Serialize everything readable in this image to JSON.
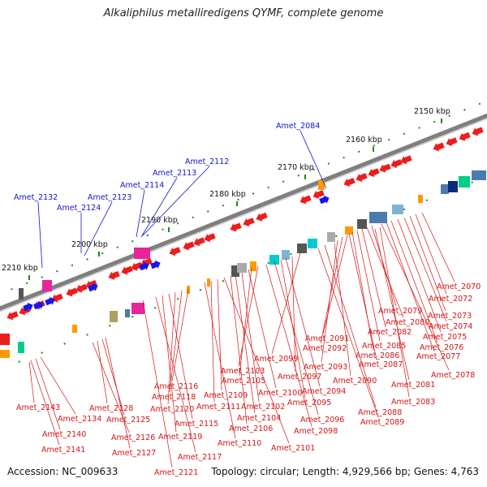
{
  "title": "Alkaliphilus metalliredigens QYMF, complete genome",
  "footer": {
    "accession": "Accession: NC_009633",
    "stats": "Topology: circular; Length: 4,929,566 bp; Genes: 4,763"
  },
  "colors": {
    "backbone": "#7f7f7f",
    "forward_gene": "#ee1c1c",
    "reverse_gene": "#1515ee",
    "tick": "#1a8a1a",
    "blue_label": "#1414c8",
    "red_label": "#d41414"
  },
  "scale": {
    "unit": "kbp",
    "labels": [
      "2150 kbp",
      "2160 kbp",
      "2170 kbp",
      "2180 kbp",
      "2190 kbp",
      "2200 kbp",
      "2210 kbp"
    ]
  },
  "upper_gene_labels": [
    "Amet_2084",
    "Amet_2112",
    "Amet_2113",
    "Amet_2114",
    "Amet_2123",
    "Amet_2124",
    "Amet_2132"
  ],
  "lower_gene_labels": [
    "Amet_2070",
    "Amet_2072",
    "Amet_2073",
    "Amet_2074",
    "Amet_2075",
    "Amet_2076",
    "Amet_2077",
    "Amet_2078",
    "Amet_2079",
    "Amet_2080",
    "Amet_2082",
    "Amet_2085",
    "Amet_2086",
    "Amet_2087",
    "Amet_2081",
    "Amet_2083",
    "Amet_2091",
    "Amet_2092",
    "Amet_2093",
    "Amet_2090",
    "Amet_2088",
    "Amet_2089",
    "Amet_2099",
    "Amet_2097",
    "Amet_2094",
    "Amet_2095",
    "Amet_2096",
    "Amet_2098",
    "Amet_2103",
    "Amet_2105",
    "Amet_2100",
    "Amet_2102",
    "Amet_2104",
    "Amet_2106",
    "Amet_2101",
    "Amet_2109",
    "Amet_2111",
    "Amet_2110",
    "Amet_2116",
    "Amet_2118",
    "Amet_2120",
    "Amet_2115",
    "Amet_2119",
    "Amet_2117",
    "Amet_2121",
    "Amet_2143",
    "Amet_2134",
    "Amet_2140",
    "Amet_2141",
    "Amet_2128",
    "Amet_2125",
    "Amet_2126",
    "Amet_2127"
  ]
}
